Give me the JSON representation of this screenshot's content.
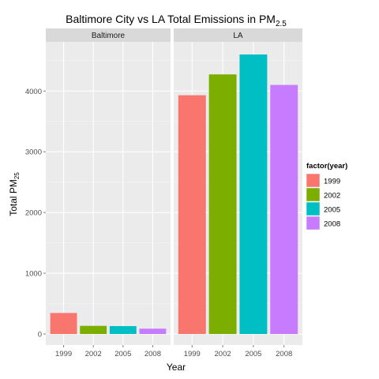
{
  "chart_data": {
    "type": "bar",
    "title": "Baltimore City vs LA Total Emissions in PM",
    "title_subscript": "2.5",
    "xlabel": "Year",
    "ylabel": "Total PM",
    "ylabel_subscript": "25",
    "categories": [
      "1999",
      "2002",
      "2005",
      "2008"
    ],
    "ylim": [
      0,
      4800
    ],
    "yticks": [
      0,
      1000,
      2000,
      3000,
      4000
    ],
    "grid": true,
    "legend_position": "right",
    "legend": {
      "title": "factor(year)",
      "entries": [
        {
          "label": "1999",
          "color": "#F8766D"
        },
        {
          "label": "2002",
          "color": "#7CAE00"
        },
        {
          "label": "2005",
          "color": "#00BFC4"
        },
        {
          "label": "2008",
          "color": "#C77CFF"
        }
      ]
    },
    "panels": [
      {
        "name": "Baltimore",
        "values": [
          346,
          134,
          130,
          88
        ]
      },
      {
        "name": "LA",
        "values": [
          3931,
          4274,
          4602,
          4101
        ]
      }
    ]
  }
}
